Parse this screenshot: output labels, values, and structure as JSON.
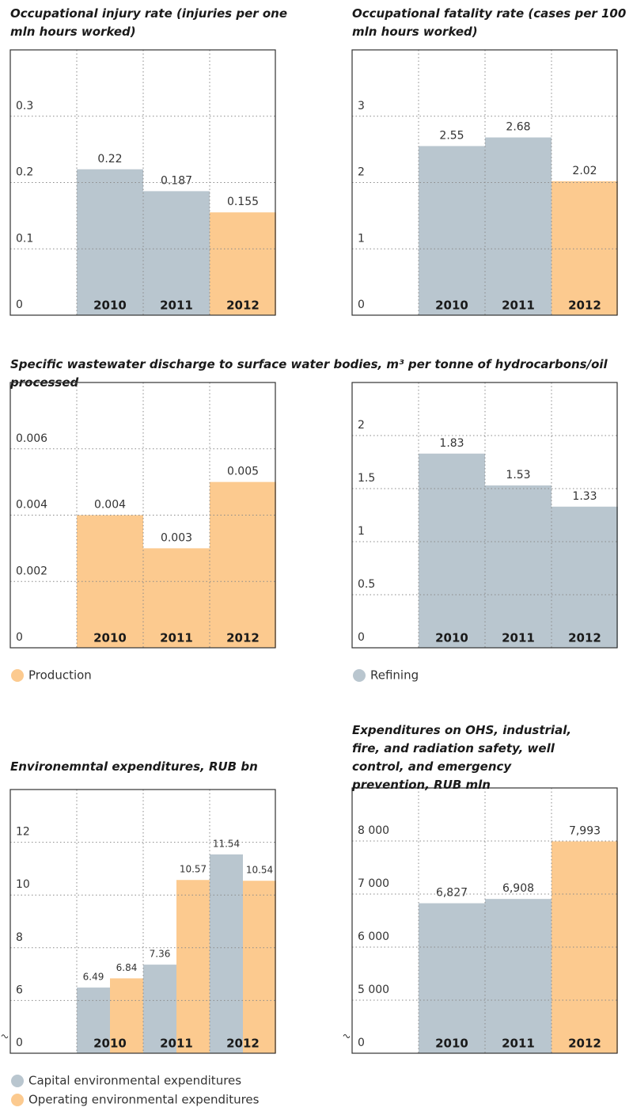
{
  "shared_title": "Specific wastewater discharge to surface water bodies, m³ per tonne of hydrocarbons/oil processed",
  "chart_data": [
    {
      "type": "bar",
      "title": "Occupational injury rate (injuries per one mln hours worked)",
      "categories": [
        "2010",
        "2011",
        "2012"
      ],
      "values": [
        0.22,
        0.187,
        0.155
      ],
      "colors": [
        "#b9c6cf",
        "#b9c6cf",
        "#fcca8f"
      ],
      "ylim": [
        0,
        0.4
      ],
      "yticks": [
        0,
        0.1,
        0.2,
        0.3
      ],
      "grid": true
    },
    {
      "type": "bar",
      "title": "Occupational fatality rate (cases per 100 mln hours worked)",
      "categories": [
        "2010",
        "2011",
        "2012"
      ],
      "values": [
        2.55,
        2.68,
        2.02
      ],
      "colors": [
        "#b9c6cf",
        "#b9c6cf",
        "#fcca8f"
      ],
      "ylim": [
        0,
        4
      ],
      "yticks": [
        0,
        1,
        2,
        3
      ],
      "grid": true
    },
    {
      "type": "bar",
      "categories": [
        "2010",
        "2011",
        "2012"
      ],
      "series": [
        {
          "name": "Production",
          "color": "#fcca8f",
          "values": [
            0.004,
            0.003,
            0.005
          ]
        }
      ],
      "ylim": [
        0,
        0.008
      ],
      "yticks": [
        0,
        0.002,
        0.004,
        0.006
      ],
      "grid": true,
      "legend": "bottom-left"
    },
    {
      "type": "bar",
      "categories": [
        "2010",
        "2011",
        "2012"
      ],
      "series": [
        {
          "name": "Refining",
          "color": "#b9c6cf",
          "values": [
            1.83,
            1.53,
            1.33
          ]
        }
      ],
      "ylim": [
        0,
        2.5
      ],
      "yticks": [
        0,
        0.5,
        1,
        1.5,
        2
      ],
      "grid": true,
      "legend": "bottom-left"
    },
    {
      "type": "bar",
      "title": "Environemntal expenditures, RUB bn",
      "categories": [
        "2010",
        "2011",
        "2012"
      ],
      "series": [
        {
          "name": "Capital environmental expenditures",
          "color": "#b9c6cf",
          "values": [
            6.49,
            7.36,
            11.54
          ]
        },
        {
          "name": "Operating environmental expenditures",
          "color": "#fcca8f",
          "values": [
            6.84,
            10.57,
            10.54
          ]
        }
      ],
      "ylim": [
        0,
        14
      ],
      "yticks": [
        0,
        6,
        8,
        10,
        12
      ],
      "axis_break": true,
      "grid": true,
      "legend": "bottom-left"
    },
    {
      "type": "bar",
      "title": "Expenditures on OHS, industrial, fire, and radiation safety, well control, and emergency prevention, RUB mln",
      "categories": [
        "2010",
        "2011",
        "2012"
      ],
      "values": [
        6827,
        6908,
        7993
      ],
      "value_labels": [
        "6,827",
        "6,908",
        "7,993"
      ],
      "colors": [
        "#b9c6cf",
        "#b9c6cf",
        "#fcca8f"
      ],
      "ylim": [
        0,
        9000
      ],
      "yticks": [
        0,
        {
          "value": 5000,
          "label": "5 000"
        },
        {
          "value": 6000,
          "label": "6 000"
        },
        {
          "value": 7000,
          "label": "7 000"
        },
        {
          "value": 8000,
          "label": "8 000"
        }
      ],
      "axis_break": true,
      "grid": true
    }
  ]
}
